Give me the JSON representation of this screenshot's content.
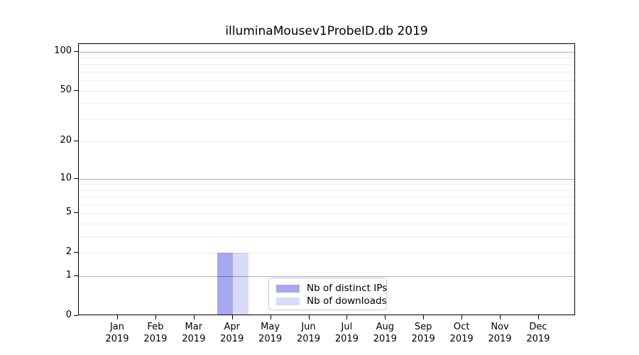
{
  "chart_data": {
    "type": "bar",
    "title": "illuminaMousev1ProbeID.db 2019",
    "xlabel": "",
    "ylabel": "",
    "y_scale": "log1p",
    "ylim": [
      0,
      113
    ],
    "grid": true,
    "y_ticks": [
      0,
      1,
      2,
      5,
      10,
      20,
      50,
      100
    ],
    "y_major_gridlines": [
      1,
      10,
      100
    ],
    "y_minor_gridlines": [
      2,
      3,
      4,
      5,
      6,
      7,
      8,
      9,
      20,
      30,
      40,
      50,
      60,
      70,
      80,
      90
    ],
    "categories": [
      {
        "month": "Jan",
        "year": "2019"
      },
      {
        "month": "Feb",
        "year": "2019"
      },
      {
        "month": "Mar",
        "year": "2019"
      },
      {
        "month": "Apr",
        "year": "2019"
      },
      {
        "month": "May",
        "year": "2019"
      },
      {
        "month": "Jun",
        "year": "2019"
      },
      {
        "month": "Jul",
        "year": "2019"
      },
      {
        "month": "Aug",
        "year": "2019"
      },
      {
        "month": "Sep",
        "year": "2019"
      },
      {
        "month": "Oct",
        "year": "2019"
      },
      {
        "month": "Nov",
        "year": "2019"
      },
      {
        "month": "Dec",
        "year": "2019"
      }
    ],
    "series": [
      {
        "name": "Nb of distinct IPs",
        "color": "#a7a7f0",
        "values": [
          0,
          0,
          0,
          2,
          0,
          0,
          0,
          0,
          0,
          0,
          0,
          0
        ]
      },
      {
        "name": "Nb of downloads",
        "color": "#d9d9f8",
        "values": [
          0,
          0,
          0,
          2,
          0,
          0,
          0,
          0,
          0,
          0,
          0,
          0
        ]
      }
    ],
    "legend_position": "lower center inside"
  },
  "colors": {
    "background": "#ffffff",
    "axis_spine": "#000000",
    "major_grid": "rgba(0,0,0,0.30)",
    "minor_grid": "rgba(0,0,0,0.08)",
    "tick_text": "#000000",
    "legend_border": "#cccccc"
  }
}
